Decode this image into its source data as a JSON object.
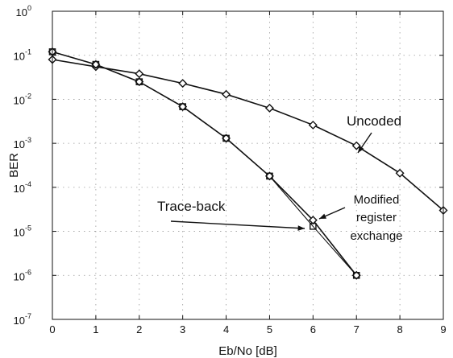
{
  "chart_data": {
    "type": "line",
    "title": "",
    "xlabel": "Eb/No [dB]",
    "ylabel": "BER",
    "xlim": [
      0,
      9
    ],
    "ylim": [
      1e-07,
      1
    ],
    "yscale": "log",
    "grid": true,
    "x_ticks": [
      "0",
      "1",
      "2",
      "3",
      "4",
      "5",
      "6",
      "7",
      "8",
      "9"
    ],
    "y_ticks": [
      {
        "base": "10",
        "exp": "0"
      },
      {
        "base": "10",
        "exp": "-1"
      },
      {
        "base": "10",
        "exp": "-2"
      },
      {
        "base": "10",
        "exp": "-3"
      },
      {
        "base": "10",
        "exp": "-4"
      },
      {
        "base": "10",
        "exp": "-5"
      },
      {
        "base": "10",
        "exp": "-6"
      },
      {
        "base": "10",
        "exp": "-7"
      }
    ],
    "series": [
      {
        "key": "uncoded",
        "marker": "diamond",
        "x": [
          0,
          1,
          2,
          3,
          4,
          5,
          6,
          7,
          8,
          9
        ],
        "y": [
          0.08,
          0.055,
          0.038,
          0.023,
          0.013,
          0.0063,
          0.0026,
          0.00088,
          0.00021,
          3e-05
        ]
      },
      {
        "key": "modified-register-exchange",
        "marker": "diamond",
        "x": [
          0,
          1,
          2,
          3,
          4,
          5,
          6,
          7
        ],
        "y": [
          0.12,
          0.062,
          0.025,
          0.0068,
          0.0013,
          0.00018,
          1.8e-05,
          1e-06
        ]
      },
      {
        "key": "trace-back",
        "marker": "square",
        "x": [
          0,
          1,
          2,
          3,
          4,
          5,
          6,
          7
        ],
        "y": [
          0.12,
          0.062,
          0.025,
          0.0068,
          0.0013,
          0.00018,
          1.3e-05,
          1e-06
        ]
      }
    ],
    "annotations": {
      "uncoded": "Uncoded",
      "trace_back": "Trace-back",
      "modified_line1": "Modified",
      "modified_line2": "register",
      "modified_line3": "exchange"
    }
  }
}
